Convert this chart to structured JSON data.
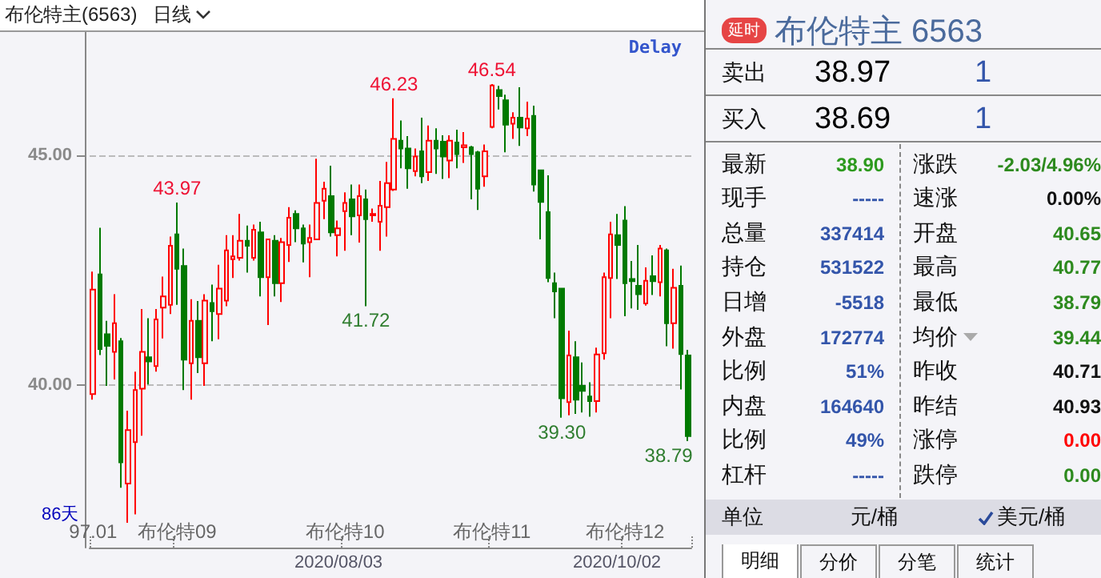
{
  "chart_data": [
    {
      "type": "candlestick",
      "title": "布伦特主(6563)",
      "subtitle": "日线",
      "categories": [
        "97.01",
        null,
        null,
        null,
        null,
        null,
        null,
        null,
        null,
        null,
        null,
        null,
        "布伦特09",
        null,
        null,
        null,
        null,
        null,
        null,
        null,
        null,
        null,
        null,
        null,
        null,
        null,
        null,
        null,
        null,
        null,
        null,
        null,
        null,
        null,
        null,
        null,
        "布伦特10",
        null,
        null,
        null,
        null,
        null,
        null,
        null,
        null,
        null,
        null,
        null,
        null,
        null,
        null,
        null,
        null,
        null,
        null,
        null,
        null,
        "布伦特11",
        null,
        null,
        null,
        null,
        null,
        null,
        null,
        null,
        null,
        null,
        null,
        null,
        null,
        null,
        null,
        null,
        null,
        null,
        "布伦特12",
        null,
        null,
        null,
        null,
        null,
        null,
        null,
        null,
        null
      ],
      "ohlc": [
        [
          39.81,
          42.47,
          39.69,
          42.08
        ],
        [
          42.41,
          43.42,
          40.66,
          40.79
        ],
        [
          41.11,
          41.4,
          39.99,
          40.86
        ],
        [
          40.73,
          41.98,
          40.13,
          41.35
        ],
        [
          40.96,
          41.03,
          37.78,
          38.33
        ],
        [
          37.87,
          39.45,
          37.02,
          39.03
        ],
        [
          38.77,
          40.3,
          37.2,
          39.9
        ],
        [
          39.93,
          41.66,
          38.91,
          40.73
        ],
        [
          40.61,
          41.46,
          40.02,
          40.52
        ],
        [
          40.42,
          41.66,
          40.3,
          41.43
        ],
        [
          41.69,
          42.36,
          41.02,
          41.93
        ],
        [
          41.75,
          43.23,
          41.55,
          43.03
        ],
        [
          43.28,
          43.97,
          41.75,
          42.53
        ],
        [
          42.59,
          42.97,
          39.9,
          40.56
        ],
        [
          40.48,
          41.87,
          39.69,
          41.4
        ],
        [
          41.4,
          41.83,
          40.27,
          40.61
        ],
        [
          40.48,
          41.98,
          39.99,
          41.84
        ],
        [
          41.79,
          42.19,
          40.96,
          41.61
        ],
        [
          41.55,
          42.62,
          41.0,
          42.1
        ],
        [
          41.84,
          43.26,
          41.72,
          42.93
        ],
        [
          42.74,
          43.26,
          42.33,
          42.8
        ],
        [
          42.77,
          43.72,
          42.71,
          43.14
        ],
        [
          43.14,
          43.47,
          42.45,
          43.03
        ],
        [
          42.77,
          43.49,
          42.71,
          43.38
        ],
        [
          43.32,
          43.55,
          41.93,
          42.35
        ],
        [
          42.35,
          43.17,
          41.31,
          43.17
        ],
        [
          43.14,
          43.26,
          41.93,
          42.22
        ],
        [
          42.22,
          43.2,
          41.81,
          43.11
        ],
        [
          43.05,
          43.87,
          42.68,
          43.64
        ],
        [
          43.72,
          43.8,
          43.11,
          43.41
        ],
        [
          43.41,
          43.49,
          42.67,
          43.08
        ],
        [
          43.11,
          43.49,
          42.35,
          43.2
        ],
        [
          43.17,
          44.92,
          43.17,
          43.96
        ],
        [
          44.01,
          44.42,
          43.61,
          44.27
        ],
        [
          44.11,
          44.77,
          43.23,
          43.32
        ],
        [
          43.26,
          43.58,
          42.8,
          43.41
        ],
        [
          43.78,
          44.19,
          42.92,
          43.96
        ],
        [
          44.04,
          44.36,
          43.26,
          43.67
        ],
        [
          43.69,
          44.36,
          43.1,
          44.11
        ],
        [
          44.04,
          44.25,
          41.72,
          43.61
        ],
        [
          43.69,
          43.84,
          43.55,
          43.72
        ],
        [
          43.55,
          44.44,
          42.92,
          43.9
        ],
        [
          43.87,
          44.85,
          43.23,
          44.39
        ],
        [
          44.25,
          46.23,
          44.22,
          45.35
        ],
        [
          45.31,
          45.75,
          44.71,
          45.14
        ],
        [
          45.14,
          45.41,
          44.27,
          44.71
        ],
        [
          44.65,
          45.14,
          44.54,
          44.97
        ],
        [
          45.08,
          45.81,
          44.39,
          44.54
        ],
        [
          44.63,
          45.64,
          44.44,
          45.31
        ],
        [
          45.31,
          45.58,
          44.59,
          45.14
        ],
        [
          45.29,
          45.43,
          44.48,
          44.97
        ],
        [
          44.88,
          45.43,
          44.5,
          45.31
        ],
        [
          45.27,
          45.55,
          44.71,
          45.02
        ],
        [
          45.17,
          45.5,
          44.83,
          45.21
        ],
        [
          45.17,
          45.2,
          44.04,
          45.02
        ],
        [
          45.06,
          45.09,
          43.81,
          44.27
        ],
        [
          44.54,
          45.23,
          44.31,
          45.08
        ],
        [
          45.61,
          46.54,
          45.58,
          46.51
        ],
        [
          46.41,
          46.5,
          45.99,
          46.28
        ],
        [
          46.19,
          46.31,
          45.06,
          45.66
        ],
        [
          45.68,
          45.93,
          45.35,
          45.81
        ],
        [
          45.81,
          46.47,
          45.2,
          45.6
        ],
        [
          45.58,
          46.16,
          45.41,
          45.79
        ],
        [
          45.85,
          46.07,
          44.21,
          44.36
        ],
        [
          44.67,
          44.67,
          43.17,
          43.98
        ],
        [
          43.76,
          44.56,
          42.24,
          42.33
        ],
        [
          42.22,
          42.45,
          41.46,
          42.04
        ],
        [
          42.1,
          42.1,
          39.3,
          39.72
        ],
        [
          39.64,
          41.19,
          39.35,
          40.65
        ],
        [
          40.61,
          40.96,
          39.38,
          39.69
        ],
        [
          39.99,
          40.5,
          39.41,
          39.88
        ],
        [
          39.76,
          40.07,
          39.32,
          39.66
        ],
        [
          39.66,
          40.82,
          39.41,
          40.67
        ],
        [
          40.7,
          42.45,
          40.56,
          42.35
        ],
        [
          42.33,
          43.55,
          41.46,
          43.28
        ],
        [
          43.26,
          43.72,
          42.31,
          43.05
        ],
        [
          43.58,
          43.89,
          41.5,
          42.22
        ],
        [
          42.31,
          42.7,
          41.67,
          42.26
        ],
        [
          42.16,
          43.05,
          41.64,
          41.98
        ],
        [
          41.78,
          42.56,
          41.73,
          42.27
        ],
        [
          42.37,
          42.82,
          41.96,
          42.26
        ],
        [
          42.24,
          43.05,
          41.93,
          42.97
        ],
        [
          42.93,
          42.97,
          40.85,
          41.35
        ],
        [
          41.35,
          42.53,
          40.8,
          42.12
        ],
        [
          42.16,
          42.6,
          39.91,
          40.68
        ],
        [
          40.65,
          40.77,
          38.79,
          38.9
        ]
      ],
      "ylim": [
        36.48,
        47.67
      ],
      "yticks": [
        {
          "value": 40,
          "label": "40.00"
        },
        {
          "value": 45,
          "label": "45.00"
        }
      ],
      "grid": "y",
      "annotations": [
        "Delay",
        "86天",
        "2020/08/03",
        "2020/10/02",
        "43.97",
        "46.23",
        "46.54",
        "41.72",
        "39.30",
        "38.79"
      ]
    },
    {
      "type": "other",
      "title": "布伦特主 6563",
      "annotations": [
        "延时",
        "卖出",
        "38.97",
        "1",
        "买入",
        "38.69",
        "1",
        "最新",
        "38.90",
        "涨跌",
        "-2.03/4.96%",
        "现手",
        "-----",
        "速涨",
        "0.00%",
        "总量",
        "337414",
        "开盘",
        "40.65",
        "持仓",
        "531522",
        "最高",
        "40.77",
        "日增",
        "-5518",
        "最低",
        "38.79",
        "外盘",
        "172774",
        "均价",
        "39.44",
        "比例",
        "51%",
        "昨收",
        "40.71",
        "内盘",
        "164640",
        "昨结",
        "40.93",
        "比例",
        "49%",
        "涨停",
        "0.00",
        "杠杆",
        "-----",
        "跌停",
        "0.00",
        "单位",
        "元/桶",
        "美元/桶",
        "明细",
        "分价",
        "分笔",
        "统计"
      ]
    }
  ]
}
